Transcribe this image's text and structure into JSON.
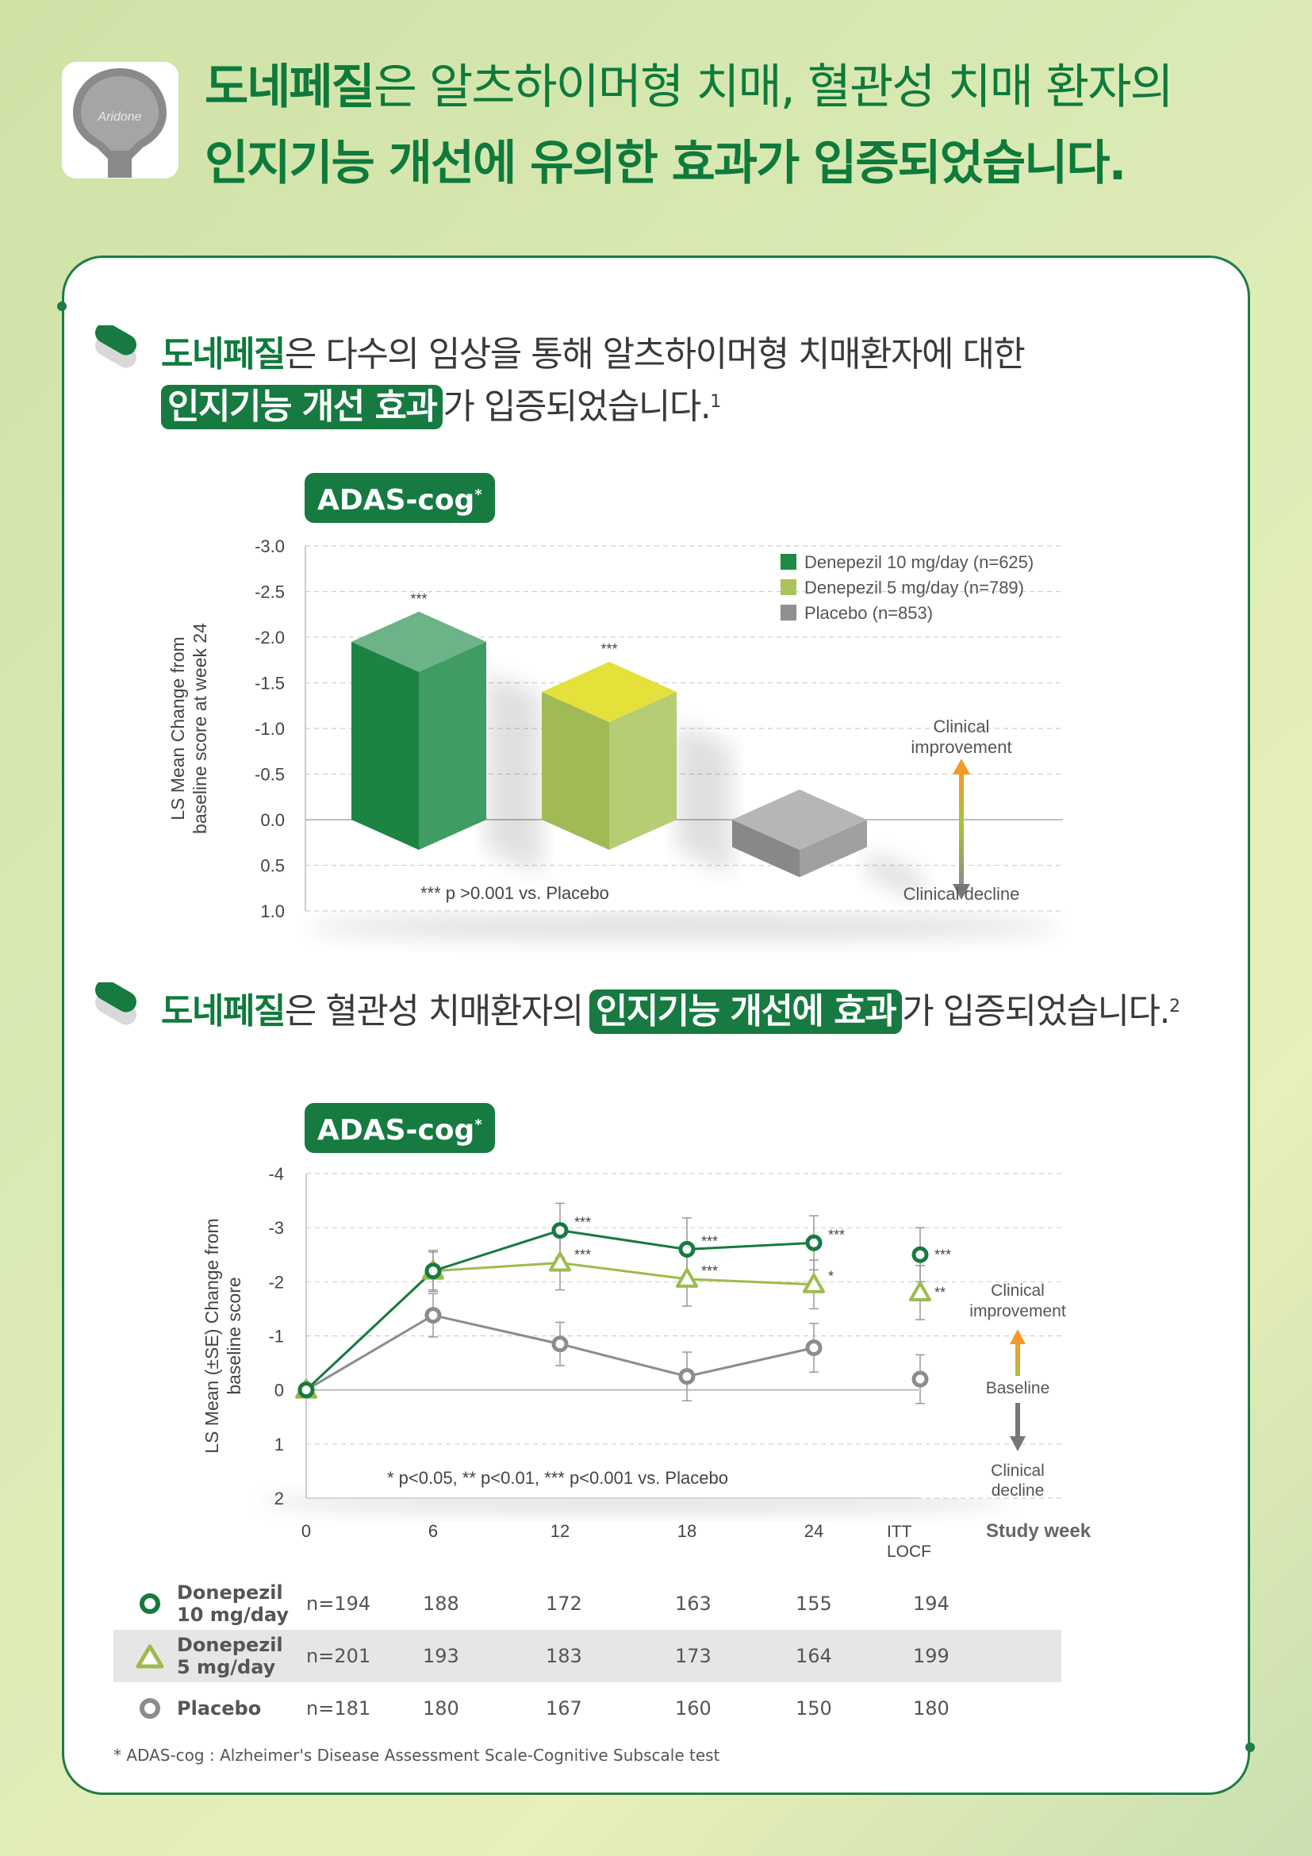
{
  "logo": {
    "text": "Aridone"
  },
  "headline": {
    "line1_bold": "도네페질",
    "line1_rest": "은 알츠하이머형 치매, 혈관성 치매 환자의",
    "line2": "인지기능 개선에 유의한 효과가 입증되었습니다."
  },
  "section1": {
    "bold": "도네페질",
    "text1": "은 다수의 임상을 통해 알츠하이머형 치매환자에 대한",
    "highlight": "인지기능 개선 효과",
    "text2": "가 입증되었습니다.",
    "ref": "1"
  },
  "section2": {
    "bold": "도네페질",
    "text1": "은 혈관성 치매환자의",
    "highlight": "인지기능 개선에 효과",
    "text2": "가 입증되었습니다.",
    "ref": "2"
  },
  "badge": {
    "label": "ADAS-cog",
    "mark": "*"
  },
  "colors": {
    "dark_green": "#167a41",
    "light_green": "#9dbb4e",
    "gray": "#8c8c8c",
    "bg": "#d6e8ae"
  },
  "chart_data": [
    {
      "type": "bar",
      "title": "ADAS-cog*",
      "ylabel": "LS Mean Change from baseline score at week 24",
      "y_ticks": [
        "-3.0",
        "-2.5",
        "-2.0",
        "-1.5",
        "-1.0",
        "-0.5",
        "0.0",
        "0.5",
        "1.0"
      ],
      "ylim": [
        1.0,
        -3.0
      ],
      "grid": true,
      "legend_position": "top-right",
      "series": [
        {
          "name": "Denepezil 10 mg/day (n=625)",
          "value": -1.95,
          "significance": "***",
          "color": "#1d8a46"
        },
        {
          "name": "Denepezil 5 mg/day (n=789)",
          "value": -1.4,
          "significance": "***",
          "color": "#a8c45a"
        },
        {
          "name": "Placebo (n=853)",
          "value": 0.3,
          "significance": "",
          "color": "#8f8f8f"
        }
      ],
      "annotations": {
        "up": "Clinical improvement",
        "down": "Clinical decline",
        "footnote": "*** p >0.001 vs. Placebo"
      }
    },
    {
      "type": "line",
      "title": "ADAS-cog*",
      "ylabel": "LS Mean (±SE) Change from baseline score",
      "xlabel": "Study week",
      "x_ticks": [
        "0",
        "6",
        "12",
        "18",
        "24"
      ],
      "x_extra_tick": [
        "ITT",
        "LOCF"
      ],
      "y_ticks": [
        "-4",
        "-3",
        "-2",
        "-1",
        "0",
        "1",
        "2"
      ],
      "ylim": [
        2,
        -4
      ],
      "grid": true,
      "series": [
        {
          "name": "Donepezil 10 mg/day",
          "marker": "circle",
          "color": "#167a41",
          "x": [
            0,
            6,
            12,
            18,
            24
          ],
          "y": [
            0,
            -2.2,
            -2.95,
            -2.6,
            -2.72
          ],
          "se": [
            0,
            0.38,
            0.5,
            0.58,
            0.5
          ],
          "sig": [
            "",
            "",
            "***",
            "***",
            "***"
          ],
          "itt": -2.5,
          "itt_se": 0.5,
          "itt_sig": "***"
        },
        {
          "name": "Donepezil 5 mg/day",
          "marker": "triangle",
          "color": "#9dbb4e",
          "x": [
            0,
            6,
            12,
            18,
            24
          ],
          "y": [
            0,
            -2.2,
            -2.35,
            -2.05,
            -1.95
          ],
          "se": [
            0,
            0.35,
            0.5,
            0.5,
            0.45
          ],
          "sig": [
            "",
            "",
            "***",
            "***",
            "*"
          ],
          "itt": -1.8,
          "itt_se": 0.5,
          "itt_sig": "**"
        },
        {
          "name": "Placebo",
          "marker": "circle",
          "color": "#8c8c8c",
          "x": [
            0,
            6,
            12,
            18,
            24
          ],
          "y": [
            0,
            -1.38,
            -0.85,
            -0.25,
            -0.78
          ],
          "se": [
            0,
            0.4,
            0.4,
            0.45,
            0.45
          ],
          "sig": [
            "",
            "",
            "",
            "",
            ""
          ],
          "itt": -0.2,
          "itt_se": 0.45,
          "itt_sig": ""
        }
      ],
      "annotations": {
        "up": "Clinical improvement",
        "baseline": "Baseline",
        "down": "Clinical decline",
        "footnote": "* p<0.05,  ** p<0.01,  *** p<0.001 vs. Placebo"
      }
    }
  ],
  "table": {
    "rows": [
      {
        "label1": "Donepezil",
        "label2": "10 mg/day",
        "n": "n=194",
        "values": [
          "188",
          "172",
          "163",
          "155",
          "194"
        ]
      },
      {
        "label1": "Donepezil",
        "label2": "5 mg/day",
        "n": "n=201",
        "values": [
          "193",
          "183",
          "173",
          "164",
          "199"
        ]
      },
      {
        "label1": "Placebo",
        "label2": "",
        "n": "n=181",
        "values": [
          "180",
          "167",
          "160",
          "150",
          "180"
        ]
      }
    ]
  },
  "footnote": "* ADAS-cog : Alzheimer's Disease Assessment Scale-Cognitive Subscale test"
}
